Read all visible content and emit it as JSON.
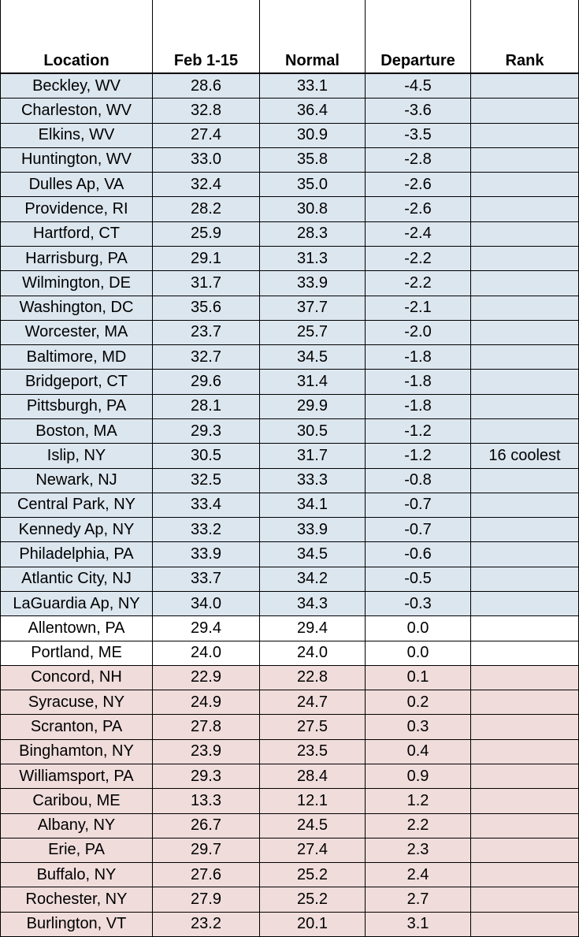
{
  "table": {
    "header": [
      "Location",
      "Feb 1-15",
      "Normal",
      "Departure",
      "Rank"
    ],
    "rows": [
      [
        "Beckley, WV",
        "28.6",
        "33.1",
        "-4.5",
        null
      ],
      [
        "Charleston, WV",
        "32.8",
        "36.4",
        "-3.6",
        null
      ],
      [
        "Elkins, WV",
        "27.4",
        "30.9",
        "-3.5",
        null
      ],
      [
        "Huntington, WV",
        "33.0",
        "35.8",
        "-2.8",
        null
      ],
      [
        "Dulles Ap, VA",
        "32.4",
        "35.0",
        "-2.6",
        null
      ],
      [
        "Providence, RI",
        "28.2",
        "30.8",
        "-2.6",
        null
      ],
      [
        "Hartford, CT",
        "25.9",
        "28.3",
        "-2.4",
        null
      ],
      [
        "Harrisburg, PA",
        "29.1",
        "31.3",
        "-2.2",
        null
      ],
      [
        "Wilmington, DE",
        "31.7",
        "33.9",
        "-2.2",
        null
      ],
      [
        "Washington, DC",
        "35.6",
        "37.7",
        "-2.1",
        null
      ],
      [
        "Worcester, MA",
        "23.7",
        "25.7",
        "-2.0",
        null
      ],
      [
        "Baltimore, MD",
        "32.7",
        "34.5",
        "-1.8",
        null
      ],
      [
        "Bridgeport, CT",
        "29.6",
        "31.4",
        "-1.8",
        null
      ],
      [
        "Pittsburgh, PA",
        "28.1",
        "29.9",
        "-1.8",
        null
      ],
      [
        "Boston, MA",
        "29.3",
        "30.5",
        "-1.2",
        null
      ],
      [
        "Islip, NY",
        "30.5",
        "31.7",
        "-1.2",
        "16 coolest"
      ],
      [
        "Newark, NJ",
        "32.5",
        "33.3",
        "-0.8",
        null
      ],
      [
        "Central Park, NY",
        "33.4",
        "34.1",
        "-0.7",
        null
      ],
      [
        "Kennedy Ap, NY",
        "33.2",
        "33.9",
        "-0.7",
        null
      ],
      [
        "Philadelphia, PA",
        "33.9",
        "34.5",
        "-0.6",
        null
      ],
      [
        "Atlantic City, NJ",
        "33.7",
        "34.2",
        "-0.5",
        null
      ],
      [
        "LaGuardia Ap, NY",
        "34.0",
        "34.3",
        "-0.3",
        null
      ],
      [
        "Allentown, PA",
        "29.4",
        "29.4",
        "0.0",
        null
      ],
      [
        "Portland, ME",
        "24.0",
        "24.0",
        "0.0",
        null
      ],
      [
        "Concord, NH",
        "22.9",
        "22.8",
        "0.1",
        null
      ],
      [
        "Syracuse, NY",
        "24.9",
        "24.7",
        "0.2",
        null
      ],
      [
        "Scranton, PA",
        "27.8",
        "27.5",
        "0.3",
        null
      ],
      [
        "Binghamton, NY",
        "23.9",
        "23.5",
        "0.4",
        null
      ],
      [
        "Williamsport, PA",
        "29.3",
        "28.4",
        "0.9",
        null
      ],
      [
        "Caribou, ME",
        "13.3",
        "12.1",
        "1.2",
        null
      ],
      [
        "Albany, NY",
        "26.7",
        "24.5",
        "2.2",
        null
      ],
      [
        "Erie, PA",
        "29.7",
        "27.4",
        "2.3",
        null
      ],
      [
        "Buffalo, NY",
        "27.6",
        "25.2",
        "2.4",
        null
      ],
      [
        "Rochester, NY",
        "27.9",
        "25.2",
        "2.7",
        null
      ],
      [
        "Burlington, VT",
        "23.2",
        "20.1",
        "3.1",
        null
      ]
    ]
  }
}
